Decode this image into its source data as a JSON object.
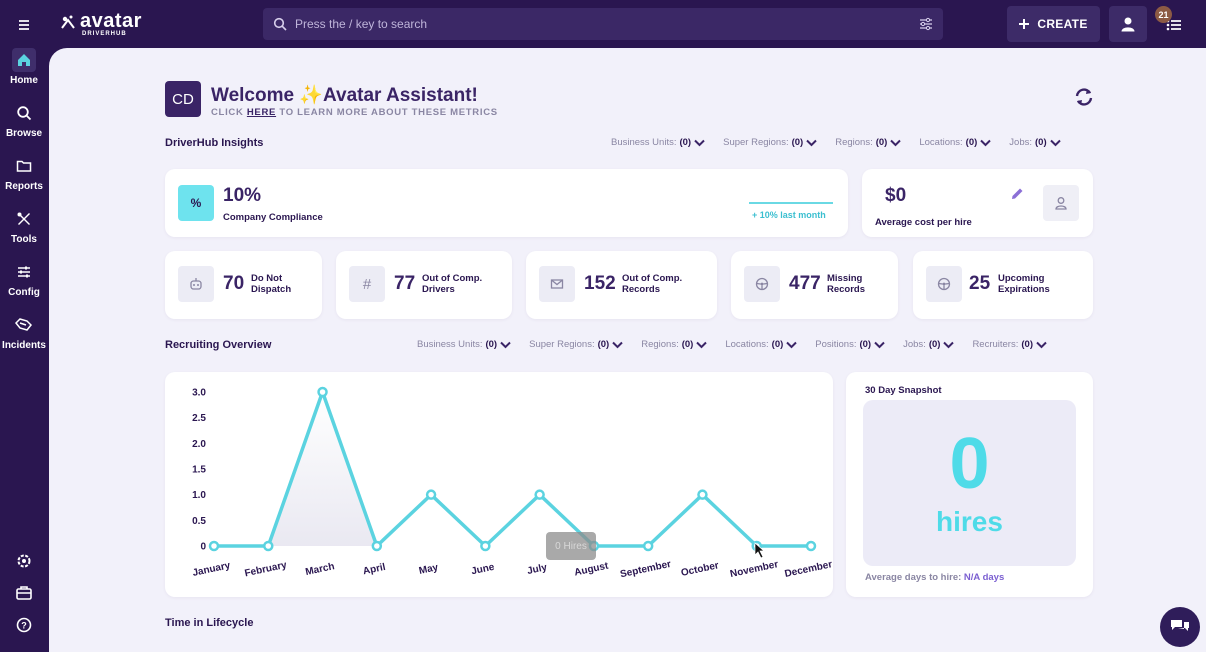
{
  "app": {
    "logo_text": "avatar",
    "logo_sub": "DRIVERHUB"
  },
  "search": {
    "placeholder": "Press the / key to search"
  },
  "header": {
    "create_label": "CREATE",
    "notification_count": "21"
  },
  "sidebar": {
    "items": [
      {
        "label": "Home",
        "icon": "home-icon"
      },
      {
        "label": "Browse",
        "icon": "search-icon"
      },
      {
        "label": "Reports",
        "icon": "folder-icon"
      },
      {
        "label": "Tools",
        "icon": "tools-icon"
      },
      {
        "label": "Config",
        "icon": "sliders-icon"
      },
      {
        "label": "Incidents",
        "icon": "incidents-icon"
      }
    ]
  },
  "welcome": {
    "initials": "CD",
    "title": "Welcome ✨Avatar Assistant!",
    "sub_prefix": "CLICK ",
    "sub_link": "HERE",
    "sub_suffix": " TO LEARN MORE ABOUT THESE METRICS"
  },
  "insights": {
    "title": "DriverHub Insights",
    "filters": [
      {
        "label": "Business Units:",
        "count": "(0)"
      },
      {
        "label": "Super Regions:",
        "count": "(0)"
      },
      {
        "label": "Regions:",
        "count": "(0)"
      },
      {
        "label": "Locations:",
        "count": "(0)"
      },
      {
        "label": "Jobs:",
        "count": "(0)"
      }
    ],
    "compliance": {
      "icon_text": "%",
      "value": "10%",
      "label": "Company Compliance",
      "trend": "+ 10% last month"
    },
    "cost": {
      "value": "$0",
      "label": "Average cost per hire"
    },
    "metrics": [
      {
        "value": "70",
        "label_1": "Do Not",
        "label_2": "Dispatch",
        "icon": "robot-icon"
      },
      {
        "value": "77",
        "label_1": "Out of Comp.",
        "label_2": "Drivers",
        "icon": "hash-icon"
      },
      {
        "value": "152",
        "label_1": "Out of Comp.",
        "label_2": "Records",
        "icon": "mail-icon"
      },
      {
        "value": "477",
        "label_1": "Missing",
        "label_2": "Records",
        "icon": "steering-wheel-icon"
      },
      {
        "value": "25",
        "label_1": "Upcoming",
        "label_2": "Expirations",
        "icon": "steering-wheel-icon"
      }
    ]
  },
  "recruiting": {
    "title": "Recruiting Overview",
    "filters": [
      {
        "label": "Business Units:",
        "count": "(0)"
      },
      {
        "label": "Super Regions:",
        "count": "(0)"
      },
      {
        "label": "Regions:",
        "count": "(0)"
      },
      {
        "label": "Locations:",
        "count": "(0)"
      },
      {
        "label": "Positions:",
        "count": "(0)"
      },
      {
        "label": "Jobs:",
        "count": "(0)"
      },
      {
        "label": "Recruiters:",
        "count": "(0)"
      }
    ],
    "tooltip": "0 Hires"
  },
  "chart_data": {
    "type": "line",
    "categories": [
      "January",
      "February",
      "March",
      "April",
      "May",
      "June",
      "July",
      "August",
      "September",
      "October",
      "November",
      "December"
    ],
    "values": [
      0,
      0,
      3,
      0,
      1,
      0,
      1,
      0,
      0,
      1,
      0,
      0
    ],
    "y_ticks": [
      "0",
      "0.5",
      "1.0",
      "1.5",
      "2.0",
      "2.5",
      "3.0"
    ],
    "ylim": [
      0,
      3
    ],
    "line_color": "#5bd3e0",
    "title": "",
    "xlabel": "",
    "ylabel": ""
  },
  "snapshot": {
    "title": "30 Day Snapshot",
    "value": "0",
    "unit": "hires",
    "footer_label": "Average days to hire:",
    "footer_value": "N/A days"
  },
  "lifecycle": {
    "title": "Time in Lifecycle"
  }
}
